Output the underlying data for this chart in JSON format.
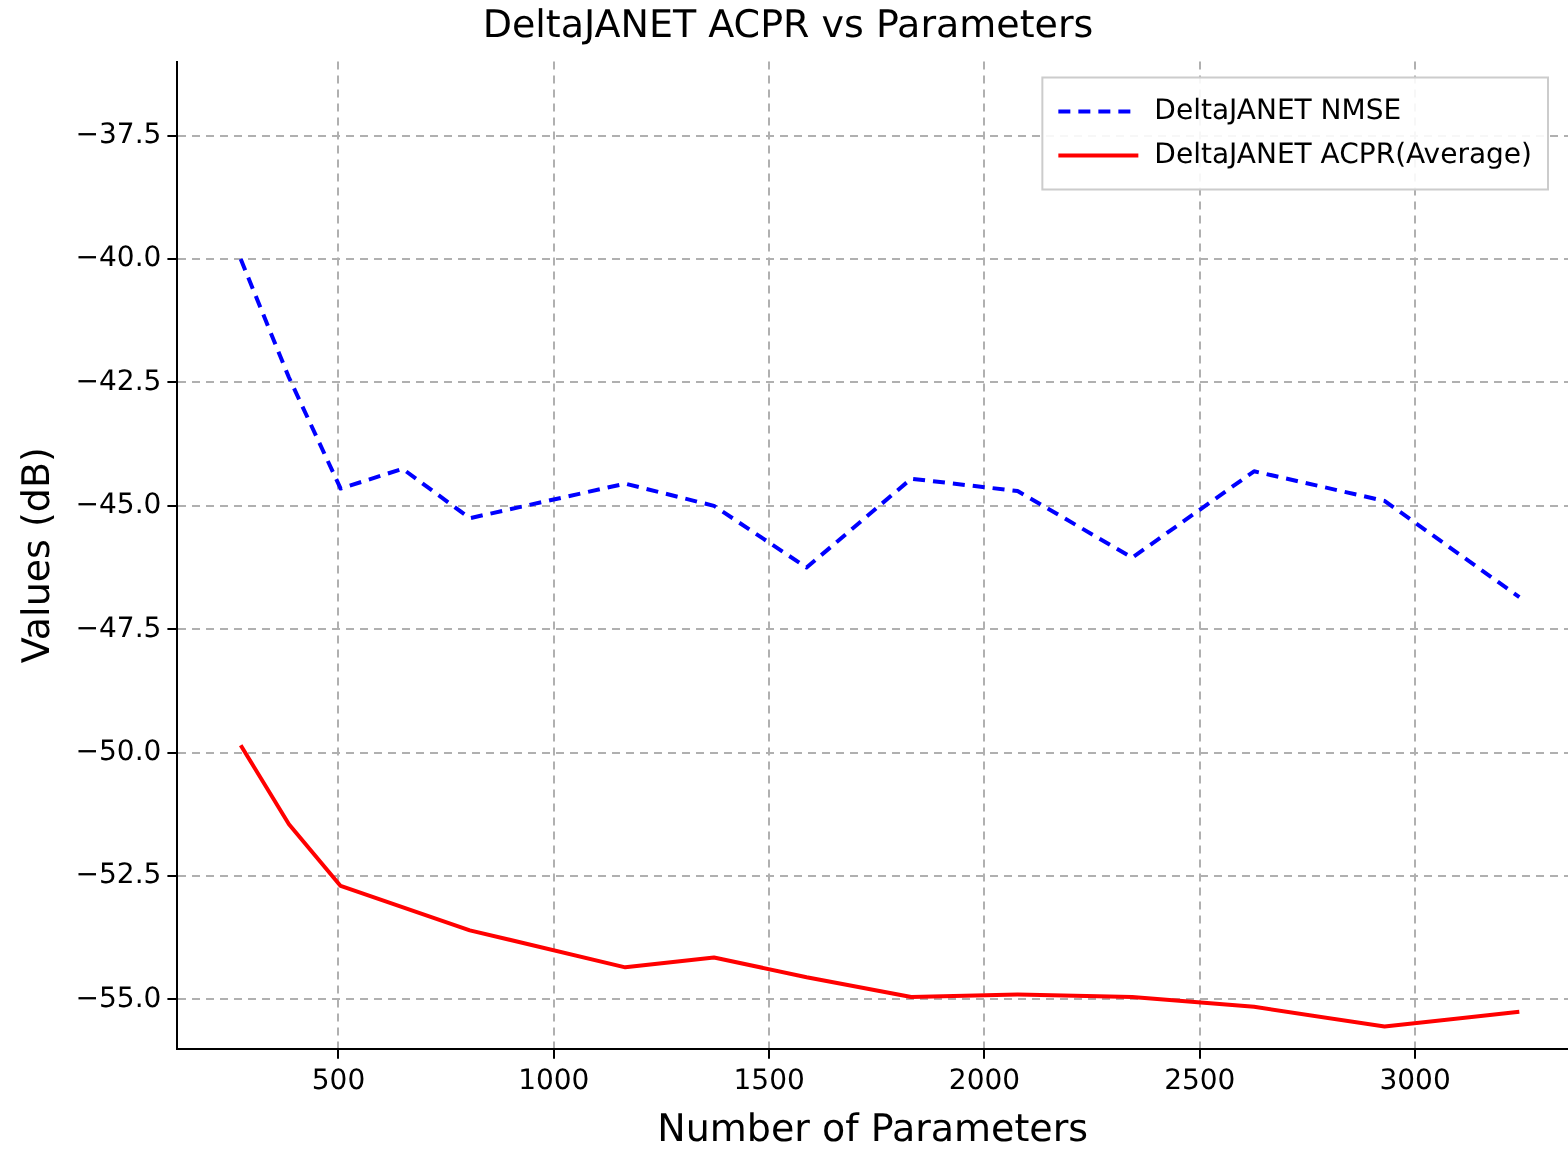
{
  "chart_data": {
    "type": "line",
    "title": "DeltaJANET ACPR vs Parameters",
    "xlabel": "Number of Parameters",
    "ylabel": "Values (dB)",
    "series": [
      {
        "name": "DeltaJANET NMSE",
        "color": "#0000ff",
        "line_style": "dashed",
        "x": [
          273,
          385,
          505,
          649,
          805,
          1166,
          1372,
          1587,
          1830,
          2077,
          2343,
          2626,
          2929,
          3242
        ],
        "values": [
          -40.0,
          -42.4,
          -44.65,
          -44.25,
          -45.25,
          -44.55,
          -45.0,
          -46.25,
          -44.45,
          -44.7,
          -46.05,
          -44.3,
          -44.9,
          -46.85
        ]
      },
      {
        "name": "DeltaJANET ACPR(Average)",
        "color": "#ff0000",
        "line_style": "solid",
        "x": [
          273,
          385,
          505,
          805,
          1166,
          1372,
          1587,
          1830,
          2077,
          2343,
          2626,
          2929,
          3242
        ],
        "values": [
          -49.85,
          -51.45,
          -52.7,
          -53.6,
          -54.35,
          -54.15,
          -54.55,
          -54.95,
          -54.9,
          -54.95,
          -55.15,
          -55.55,
          -55.25
        ]
      }
    ],
    "xlim": [
      126,
      3355
    ],
    "ylim": [
      -56,
      -36
    ],
    "xticks": [
      500,
      1000,
      1500,
      2000,
      2500,
      3000
    ],
    "yticks": [
      {
        "value": -55,
        "label": "−55.0"
      },
      {
        "value": -52.5,
        "label": "−52.5"
      },
      {
        "value": -50,
        "label": "−50.0"
      },
      {
        "value": -47.5,
        "label": "−47.5"
      },
      {
        "value": -45,
        "label": "−45.0"
      },
      {
        "value": -42.5,
        "label": "−42.5"
      },
      {
        "value": -40,
        "label": "−40.0"
      },
      {
        "value": -37.5,
        "label": "−37.5"
      }
    ],
    "grid": true,
    "legend": "top right",
    "marker": "none"
  }
}
